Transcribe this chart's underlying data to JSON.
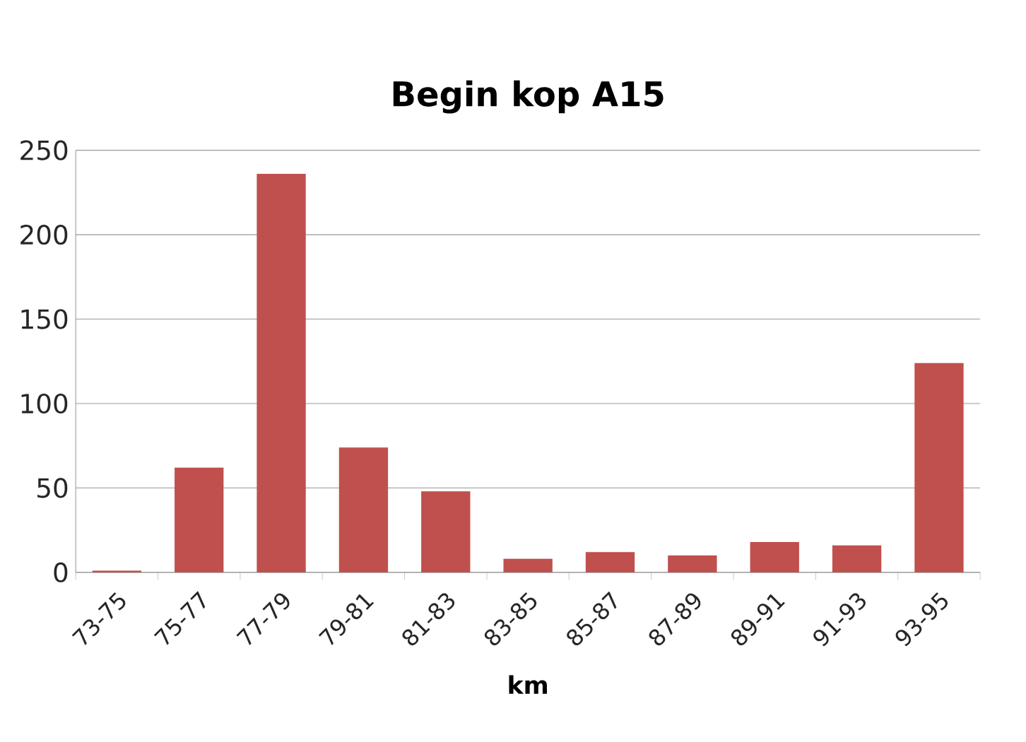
{
  "chart_data": {
    "type": "bar",
    "title": "Begin kop A15",
    "xlabel": "km",
    "categories": [
      "73-75",
      "75-77",
      "77-79",
      "79-81",
      "81-83",
      "83-85",
      "85-87",
      "87-89",
      "89-91",
      "91-93",
      "93-95"
    ],
    "values": [
      1,
      62,
      236,
      74,
      48,
      8,
      12,
      10,
      18,
      16,
      124
    ],
    "color": "#c0504d",
    "ylim": [
      0,
      250
    ],
    "yticks": [
      0,
      50,
      100,
      150,
      200,
      250
    ],
    "grid": "y"
  }
}
